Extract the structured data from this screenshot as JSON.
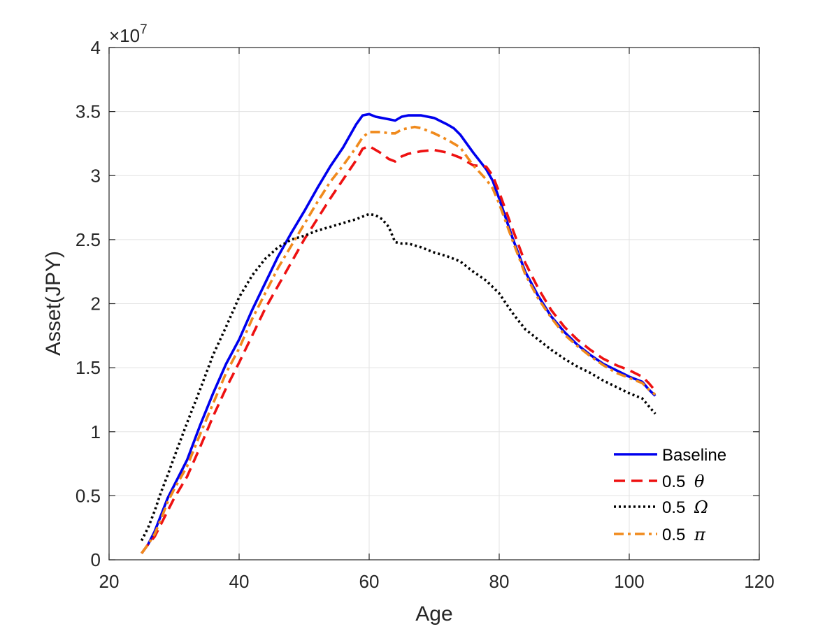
{
  "chart_data": {
    "type": "line",
    "title": "",
    "xlabel": "Age",
    "ylabel": "Asset(JPY)",
    "exponent_label": "×10",
    "exponent_power": "7",
    "xlim": [
      20,
      120
    ],
    "ylim": [
      0,
      4
    ],
    "grid": true,
    "legend_position": "bottom-right",
    "x_ticks": [
      20,
      40,
      60,
      80,
      100,
      120
    ],
    "x_tick_labels": [
      "20",
      "40",
      "60",
      "80",
      "100",
      "120"
    ],
    "y_ticks": [
      0,
      0.5,
      1,
      1.5,
      2,
      2.5,
      3,
      3.5,
      4
    ],
    "y_tick_labels": [
      "0",
      "0.5",
      "1",
      "1.5",
      "2",
      "2.5",
      "3",
      "3.5",
      "4"
    ],
    "series": [
      {
        "name": "Baseline",
        "legend_label": "Baseline",
        "legend_symbol": "",
        "color": "#0000ee",
        "style": "solid",
        "x": [
          25,
          26,
          27,
          28,
          29,
          30,
          32,
          34,
          36,
          38,
          40,
          42,
          44,
          46,
          48,
          50,
          52,
          54,
          56,
          58,
          59,
          60,
          61,
          62,
          63,
          64,
          65,
          66,
          67,
          68,
          70,
          72,
          73,
          74,
          75,
          76,
          78,
          79,
          80,
          82,
          84,
          86,
          88,
          90,
          92,
          94,
          96,
          98,
          100,
          102,
          103,
          104
        ],
        "y": [
          0.05,
          0.12,
          0.22,
          0.35,
          0.48,
          0.58,
          0.78,
          1.05,
          1.3,
          1.53,
          1.72,
          1.95,
          2.16,
          2.37,
          2.55,
          2.72,
          2.9,
          3.07,
          3.22,
          3.4,
          3.47,
          3.48,
          3.46,
          3.45,
          3.44,
          3.43,
          3.46,
          3.47,
          3.47,
          3.47,
          3.45,
          3.4,
          3.37,
          3.32,
          3.25,
          3.18,
          3.05,
          2.96,
          2.82,
          2.52,
          2.25,
          2.06,
          1.9,
          1.78,
          1.68,
          1.6,
          1.53,
          1.48,
          1.43,
          1.39,
          1.33,
          1.28
        ]
      },
      {
        "name": "0.5 theta",
        "legend_label": "0.5 ",
        "legend_symbol": "θ",
        "color": "#ee1111",
        "style": "dashed",
        "x": [
          25,
          26,
          27,
          28,
          29,
          30,
          32,
          34,
          36,
          38,
          40,
          42,
          44,
          46,
          48,
          50,
          52,
          54,
          56,
          58,
          59,
          60,
          61,
          62,
          63,
          64,
          65,
          66,
          68,
          70,
          72,
          74,
          76,
          78,
          79,
          80,
          82,
          84,
          86,
          88,
          90,
          92,
          94,
          96,
          98,
          100,
          102,
          103,
          104
        ],
        "y": [
          0.05,
          0.12,
          0.18,
          0.28,
          0.38,
          0.48,
          0.65,
          0.88,
          1.12,
          1.34,
          1.54,
          1.75,
          1.96,
          2.14,
          2.32,
          2.5,
          2.66,
          2.82,
          2.97,
          3.12,
          3.21,
          3.23,
          3.2,
          3.17,
          3.13,
          3.11,
          3.15,
          3.17,
          3.19,
          3.2,
          3.18,
          3.14,
          3.08,
          3.07,
          3.0,
          2.87,
          2.59,
          2.32,
          2.12,
          1.95,
          1.82,
          1.72,
          1.64,
          1.57,
          1.52,
          1.48,
          1.43,
          1.38,
          1.32
        ]
      },
      {
        "name": "0.5 Omega",
        "legend_label": "0.5 ",
        "legend_symbol": "Ω",
        "color": "#000000",
        "style": "dotted",
        "x": [
          25,
          26,
          27,
          28,
          29,
          30,
          32,
          34,
          36,
          38,
          40,
          42,
          44,
          46,
          48,
          50,
          52,
          54,
          56,
          58,
          59,
          60,
          61,
          62,
          63,
          64,
          65,
          66,
          68,
          70,
          72,
          74,
          76,
          78,
          80,
          82,
          84,
          86,
          88,
          90,
          92,
          94,
          96,
          98,
          100,
          102,
          103,
          104
        ],
        "y": [
          0.15,
          0.25,
          0.38,
          0.53,
          0.66,
          0.8,
          1.07,
          1.33,
          1.6,
          1.82,
          2.05,
          2.22,
          2.35,
          2.44,
          2.5,
          2.53,
          2.57,
          2.6,
          2.63,
          2.66,
          2.68,
          2.7,
          2.69,
          2.66,
          2.6,
          2.48,
          2.47,
          2.47,
          2.44,
          2.4,
          2.37,
          2.33,
          2.25,
          2.18,
          2.08,
          1.93,
          1.8,
          1.72,
          1.64,
          1.57,
          1.51,
          1.46,
          1.4,
          1.35,
          1.3,
          1.26,
          1.2,
          1.14
        ]
      },
      {
        "name": "0.5 pi",
        "legend_label": "0.5 ",
        "legend_symbol": "π",
        "color": "#f08a1c",
        "style": "dashdot",
        "x": [
          25,
          26,
          27,
          28,
          29,
          30,
          32,
          34,
          36,
          38,
          40,
          42,
          44,
          46,
          48,
          50,
          52,
          54,
          56,
          58,
          59,
          60,
          61,
          62,
          63,
          64,
          65,
          66,
          67,
          68,
          70,
          72,
          74,
          75,
          76,
          78,
          79,
          80,
          82,
          84,
          86,
          88,
          90,
          92,
          94,
          96,
          98,
          100,
          102,
          103,
          104
        ],
        "y": [
          0.05,
          0.12,
          0.2,
          0.32,
          0.45,
          0.55,
          0.73,
          0.98,
          1.22,
          1.46,
          1.65,
          1.88,
          2.08,
          2.28,
          2.45,
          2.62,
          2.79,
          2.95,
          3.08,
          3.22,
          3.3,
          3.34,
          3.34,
          3.34,
          3.33,
          3.33,
          3.36,
          3.37,
          3.38,
          3.37,
          3.33,
          3.28,
          3.22,
          3.15,
          3.08,
          2.97,
          2.9,
          2.78,
          2.5,
          2.23,
          2.04,
          1.89,
          1.76,
          1.67,
          1.59,
          1.52,
          1.46,
          1.42,
          1.38,
          1.33,
          1.29
        ]
      }
    ]
  }
}
